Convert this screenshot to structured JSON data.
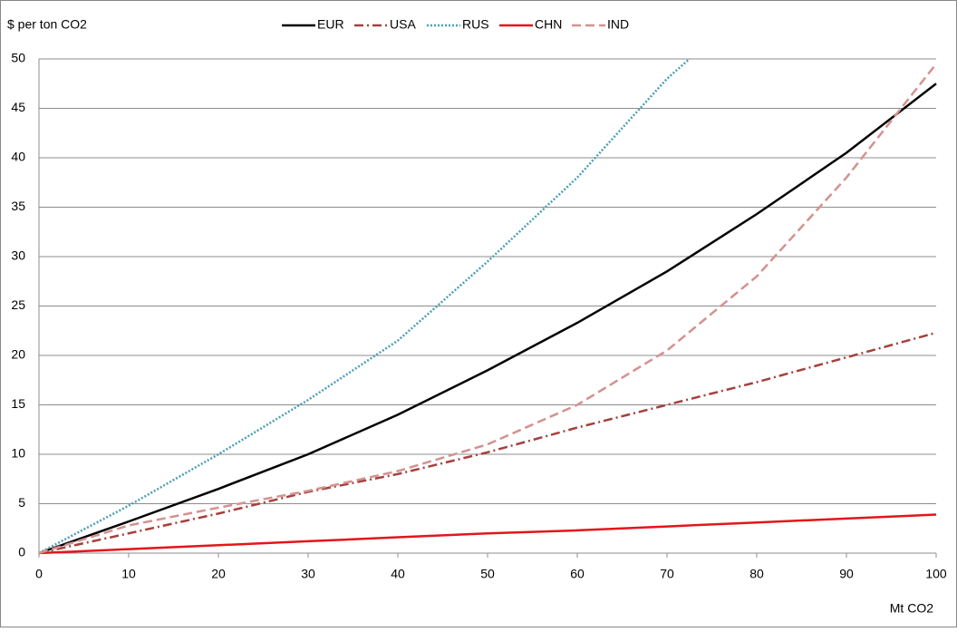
{
  "chart_data": {
    "type": "line",
    "y_label": "$ per ton CO2",
    "x_label": "Mt CO2",
    "xlim": [
      0,
      100
    ],
    "xticks": [
      0,
      10,
      20,
      30,
      40,
      50,
      60,
      70,
      80,
      90,
      100
    ],
    "ylim": [
      0,
      50
    ],
    "yticks": [
      0,
      5,
      10,
      15,
      20,
      25,
      30,
      35,
      40,
      45,
      50
    ],
    "grid": true,
    "legend": "top",
    "x": [
      0,
      10,
      20,
      30,
      40,
      50,
      60,
      70,
      80,
      90,
      100
    ],
    "series": [
      {
        "name": "EUR",
        "color": "#000000",
        "style": "solid",
        "values": [
          0,
          3.2,
          6.5,
          10,
          14,
          18.5,
          23.3,
          28.5,
          34.3,
          40.5,
          47.5
        ]
      },
      {
        "name": "USA",
        "color": "#a5403c",
        "style": "dashdot",
        "values": [
          0,
          2,
          4,
          6.2,
          8,
          10.2,
          12.7,
          15,
          17.3,
          19.8,
          22.3
        ]
      },
      {
        "name": "RUS",
        "color": "#4a9fb5",
        "style": "dotted",
        "x": [
          0,
          10,
          20,
          30,
          40,
          50,
          60,
          70,
          72.5
        ],
        "values": [
          0,
          4.8,
          10,
          15.5,
          21.5,
          29.5,
          38,
          48,
          50
        ]
      },
      {
        "name": "CHN",
        "color": "#e3161b",
        "style": "solid",
        "values": [
          0,
          0.4,
          0.8,
          1.2,
          1.6,
          2,
          2.3,
          2.7,
          3.1,
          3.5,
          3.9
        ]
      },
      {
        "name": "IND",
        "color": "#d4918f",
        "style": "dashed",
        "values": [
          0,
          2.8,
          4.6,
          6.3,
          8.3,
          11,
          15,
          20.5,
          28,
          38,
          49.5
        ]
      }
    ]
  }
}
